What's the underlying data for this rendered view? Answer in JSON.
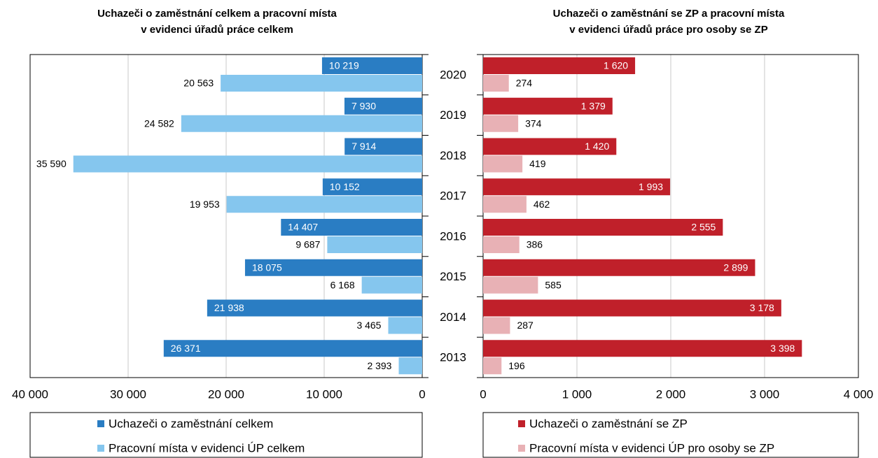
{
  "chart_data": [
    {
      "type": "bar",
      "orientation": "horizontal",
      "title": [
        "Uchazeči o zaměstnání celkem a pracovní místa",
        "v evidenci úřadů práce celkem"
      ],
      "categories": [
        "2020",
        "2019",
        "2018",
        "2017",
        "2016",
        "2015",
        "2014",
        "2013"
      ],
      "series": [
        {
          "name": "Uchazeči o zaměstnání celkem",
          "color": "#2a7dc3",
          "values": [
            10219,
            7930,
            7914,
            10152,
            14407,
            18075,
            21938,
            26371
          ],
          "value_labels": [
            "10 219",
            "7 930",
            "7 914",
            "10 152",
            "14 407",
            "18 075",
            "21 938",
            "26 371"
          ]
        },
        {
          "name": "Pracovní místa v evidenci ÚP celkem",
          "color": "#85c6ee",
          "values": [
            20563,
            24582,
            35590,
            19953,
            9687,
            6168,
            3465,
            2393
          ],
          "value_labels": [
            "20 563",
            "24 582",
            "35 590",
            "19 953",
            "9 687",
            "6 168",
            "3 465",
            "2 393"
          ]
        }
      ],
      "xlim": [
        40000,
        0
      ],
      "xticks": [
        {
          "value": 40000,
          "label": "40 000"
        },
        {
          "value": 30000,
          "label": "30 000"
        },
        {
          "value": 20000,
          "label": "20 000"
        },
        {
          "value": 10000,
          "label": "10 000"
        },
        0
      ],
      "grid": true
    },
    {
      "type": "bar",
      "orientation": "horizontal",
      "title": [
        "Uchazeči o zaměstnání se ZP a pracovní místa",
        "v evidenci úřadů práce pro osoby se ZP"
      ],
      "series": [
        {
          "name": "Uchazeči o zaměstnání se ZP",
          "color": "#c0202a",
          "values": [
            1620,
            1379,
            1420,
            1993,
            2555,
            2899,
            3178,
            3398
          ],
          "value_labels": [
            "1 620",
            "1 379",
            "1 420",
            "1 993",
            "2 555",
            "2 899",
            "3 178",
            "3 398"
          ]
        },
        {
          "name": "Pracovní místa v evidenci ÚP pro osoby se ZP",
          "color": "#e8b1b5",
          "values": [
            274,
            374,
            419,
            462,
            386,
            585,
            287,
            196
          ]
        }
      ],
      "xlim": [
        0,
        4000
      ],
      "xticks": [
        0,
        {
          "value": 1000,
          "label": "1 000"
        },
        {
          "value": 2000,
          "label": "2 000"
        },
        {
          "value": 3000,
          "label": "3 000"
        },
        {
          "value": 4000,
          "label": "4 000"
        }
      ],
      "grid": true
    }
  ]
}
